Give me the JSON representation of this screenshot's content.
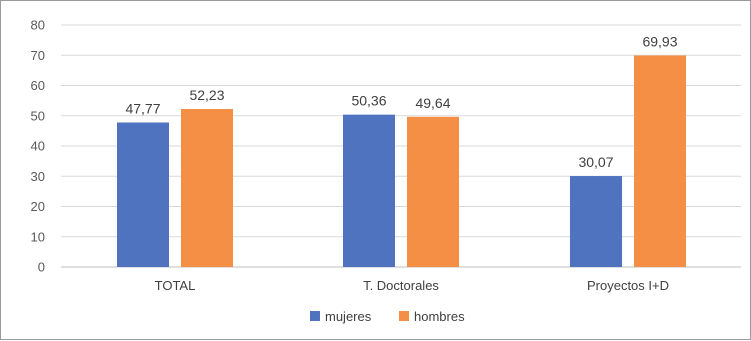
{
  "chart_data": {
    "type": "bar",
    "title": "",
    "xlabel": "",
    "ylabel": "",
    "categories": [
      "TOTAL",
      "T. Doctorales",
      "Proyectos I+D"
    ],
    "series": [
      {
        "name": "mujeres",
        "color": "#4F73BE",
        "values": [
          47.77,
          50.36,
          30.07
        ],
        "labels": [
          "47,77",
          "50,36",
          "30,07"
        ]
      },
      {
        "name": "hombres",
        "color": "#F58F45",
        "values": [
          52.23,
          49.64,
          69.93
        ],
        "labels": [
          "52,23",
          "49,64",
          "69,93"
        ]
      }
    ],
    "ylim": [
      0,
      80
    ],
    "yticks": [
      0,
      10,
      20,
      30,
      40,
      50,
      60,
      70,
      80
    ],
    "grid": true,
    "gridColor": "#d9d9d9",
    "axisColor": "#bfbfbf",
    "legend": "bottom-center"
  }
}
